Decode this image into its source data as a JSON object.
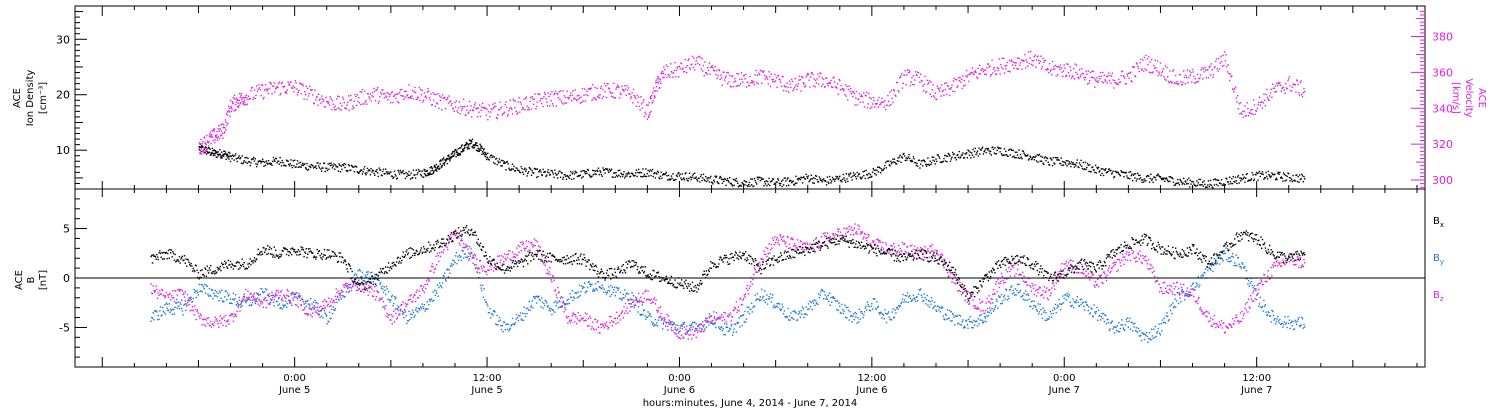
{
  "chart_data": [
    {
      "type": "scatter",
      "title": "",
      "y_label_lines": [
        "ACE",
        "Ion Density",
        "[cm⁻³]"
      ],
      "y2_label_lines": [
        "ACE",
        "Velocity",
        "[km/s]"
      ],
      "y_ticks": [
        "10",
        "20",
        "30"
      ],
      "y_range": [
        3,
        36
      ],
      "y2_ticks": [
        "300",
        "320",
        "340",
        "360",
        "380"
      ],
      "y2_range": [
        295,
        397
      ],
      "series": [
        {
          "name": "",
          "axis": "left",
          "color": "#000000",
          "x_hours": [
            -6,
            -5.5,
            -5,
            -4.5,
            -4,
            -3,
            -2,
            -1,
            0,
            1,
            2,
            3,
            4,
            5,
            6,
            7,
            8,
            8.5,
            9,
            9.5,
            10,
            10.5,
            11,
            11.5,
            12,
            13,
            14,
            15,
            16,
            17,
            18,
            19,
            20,
            21,
            22,
            23,
            24,
            25,
            26,
            27,
            28,
            29,
            30,
            31,
            32,
            33,
            34,
            35,
            36,
            37,
            38,
            39,
            40,
            41,
            42,
            43,
            44,
            45,
            46,
            47,
            48,
            49,
            50,
            51,
            52,
            53,
            54,
            55,
            56,
            57,
            58,
            59,
            60,
            61,
            62,
            63
          ],
          "values": [
            10.5,
            10,
            9.5,
            9.5,
            8.8,
            8.2,
            7.8,
            8.2,
            7.5,
            7.2,
            7,
            7,
            6.6,
            6.2,
            5.8,
            5.6,
            6,
            6.5,
            7.5,
            8.5,
            9.5,
            10.5,
            11.5,
            10.5,
            9,
            7.5,
            6.5,
            6,
            5.8,
            5.5,
            5.8,
            6.2,
            6,
            5.8,
            6.2,
            5.5,
            5.5,
            5.2,
            4.8,
            4.5,
            4.2,
            4.5,
            4.2,
            4.5,
            5.2,
            4.5,
            5,
            5.5,
            6,
            7.5,
            9,
            7.5,
            8.5,
            9,
            9.5,
            10,
            10,
            9.5,
            9,
            8,
            8,
            7.5,
            6.5,
            6,
            5.5,
            5,
            5,
            4.5,
            4.2,
            4,
            4.5,
            5,
            5.5,
            5.5,
            5.2,
            5
          ]
        },
        {
          "name": "",
          "axis": "right",
          "color": "#e020e0",
          "x_hours": [
            -6,
            -5.5,
            -5,
            -4.5,
            -4,
            -3.5,
            -3,
            -2,
            -1,
            0,
            1,
            2,
            3,
            4,
            5,
            6,
            7,
            8,
            9,
            10,
            11,
            12,
            13,
            14,
            15,
            16,
            17,
            18,
            19,
            20,
            21,
            22,
            22.5,
            23,
            24,
            25,
            26,
            27,
            28,
            29,
            30,
            31,
            32,
            33,
            34,
            35,
            36,
            37,
            38,
            39,
            40,
            41,
            42,
            43,
            44,
            45,
            46,
            47,
            48,
            49,
            50,
            51,
            52,
            53,
            54,
            55,
            56,
            57,
            58,
            59,
            60,
            61,
            62,
            63
          ],
          "values": [
            318,
            322,
            325,
            328,
            342,
            345,
            347,
            350,
            352,
            352,
            348,
            344,
            342,
            346,
            348,
            346,
            350,
            348,
            344,
            342,
            340,
            338,
            340,
            342,
            344,
            346,
            346,
            348,
            350,
            350,
            348,
            338,
            352,
            360,
            362,
            366,
            360,
            356,
            356,
            358,
            356,
            352,
            356,
            356,
            352,
            346,
            344,
            344,
            358,
            356,
            348,
            352,
            358,
            362,
            364,
            366,
            368,
            362,
            362,
            360,
            356,
            356,
            358,
            366,
            362,
            356,
            358,
            360,
            368,
            338,
            342,
            350,
            354,
            350
          ]
        }
      ]
    },
    {
      "type": "scatter",
      "title": "",
      "y_label_lines": [
        "ACE",
        "B",
        "[nT]"
      ],
      "y_ticks": [
        "-5",
        "0",
        "5"
      ],
      "y_range": [
        -9,
        9
      ],
      "x_label": "hours:minutes, June  4, 2014 - June  7, 2014",
      "x_range_hours": [
        -13.7,
        70.5
      ],
      "x_tick_hours": [
        0,
        12,
        24,
        36,
        48,
        60
      ],
      "x_ticks": [
        {
          "time": "0:00",
          "date": "June 5"
        },
        {
          "time": "12:00",
          "date": "June 5"
        },
        {
          "time": "0:00",
          "date": "June 6"
        },
        {
          "time": "12:00",
          "date": "June 6"
        },
        {
          "time": "0:00",
          "date": "June 7"
        },
        {
          "time": "12:00",
          "date": "June 7"
        }
      ],
      "series": [
        {
          "name": "Bx",
          "label_main": "B",
          "label_sub": "x",
          "color": "#000000",
          "x_hours": [
            -9,
            -8,
            -7,
            -6,
            -5,
            -4,
            -3,
            -2,
            -1,
            0,
            1,
            2,
            3,
            4,
            5,
            6,
            7,
            8,
            9,
            10,
            11,
            12,
            13,
            14,
            15,
            16,
            17,
            18,
            19,
            20,
            21,
            22,
            23,
            24,
            25,
            26,
            27,
            28,
            29,
            30,
            31,
            32,
            33,
            34,
            35,
            36,
            37,
            38,
            39,
            40,
            41,
            42,
            43,
            44,
            45,
            46,
            47,
            48,
            49,
            50,
            51,
            52,
            53,
            54,
            55,
            56,
            57,
            58,
            59,
            60,
            61,
            62,
            63
          ],
          "values": [
            2,
            2.5,
            2,
            0.5,
            1,
            1.5,
            1.5,
            3,
            2.5,
            3,
            2.5,
            2.5,
            2,
            -1,
            0,
            1.5,
            2.5,
            3,
            3.5,
            4.5,
            5,
            2,
            1,
            1.5,
            2.5,
            2,
            2,
            2,
            0.5,
            0.5,
            1.5,
            0.5,
            0,
            -0.5,
            -1,
            1.5,
            2,
            2.5,
            1,
            2,
            2.5,
            3,
            3.5,
            4,
            3.5,
            3,
            2.5,
            2,
            2.5,
            2,
            1,
            -2,
            0,
            1.5,
            2,
            1.5,
            0,
            0.5,
            1.5,
            1,
            2.5,
            3.5,
            4,
            3,
            2.5,
            3,
            1.5,
            3,
            4.5,
            4,
            2.5,
            2,
            2.5
          ]
        },
        {
          "name": "By",
          "label_main": "B",
          "label_sub": "y",
          "color": "#1a7ad4",
          "x_hours": [
            -9,
            -8,
            -7,
            -6,
            -5,
            -4,
            -3,
            -2,
            -1,
            0,
            1,
            2,
            3,
            4,
            5,
            6,
            7,
            8,
            9,
            10,
            11,
            12,
            13,
            14,
            15,
            16,
            17,
            18,
            19,
            20,
            21,
            22,
            23,
            24,
            25,
            26,
            27,
            28,
            29,
            30,
            31,
            32,
            33,
            34,
            35,
            36,
            37,
            38,
            39,
            40,
            41,
            42,
            43,
            44,
            45,
            46,
            47,
            48,
            49,
            50,
            51,
            52,
            53,
            54,
            55,
            56,
            57,
            58,
            59,
            60,
            61,
            62,
            63
          ],
          "values": [
            -4,
            -3,
            -3,
            -1,
            -1.5,
            -2,
            -2.5,
            -1.5,
            -2.5,
            -2,
            -2.5,
            -4,
            -1.5,
            0.5,
            0,
            -2,
            -4,
            -3,
            -1,
            2,
            3,
            -3,
            -5,
            -4,
            -2,
            -3,
            -2,
            -1,
            -0.5,
            -1.5,
            -2,
            -4,
            -4.5,
            -5,
            -5,
            -4,
            -5.5,
            -4,
            -1.5,
            -2.5,
            -4,
            -3,
            -1.5,
            -3,
            -4,
            -2.5,
            -4,
            -2,
            -1.5,
            -3,
            -4,
            -4.5,
            -4,
            -2,
            -1,
            -2.5,
            -4,
            -2,
            -2.5,
            -3.5,
            -5,
            -4.5,
            -6,
            -5,
            -2,
            -1,
            1,
            2.5,
            1.5,
            -2,
            -4,
            -4.5,
            -4.5
          ]
        },
        {
          "name": "Bz",
          "label_main": "B",
          "label_sub": "z",
          "color": "#e020e0",
          "x_hours": [
            -9,
            -8,
            -7,
            -6,
            -5,
            -4,
            -3,
            -2,
            -1,
            0,
            1,
            2,
            3,
            4,
            5,
            6,
            7,
            8,
            9,
            10,
            11,
            12,
            13,
            14,
            15,
            16,
            17,
            18,
            19,
            20,
            21,
            22,
            23,
            24,
            25,
            26,
            27,
            28,
            29,
            30,
            31,
            32,
            33,
            34,
            35,
            36,
            37,
            38,
            39,
            40,
            41,
            42,
            43,
            44,
            45,
            46,
            47,
            48,
            49,
            50,
            51,
            52,
            53,
            54,
            55,
            56,
            57,
            58,
            59,
            60,
            61,
            62,
            63
          ],
          "values": [
            -1,
            -2,
            -1.5,
            -4,
            -4.5,
            -4,
            -1.5,
            -2.5,
            -1.5,
            -2,
            -3.5,
            -2.5,
            -1,
            -0.5,
            -1.5,
            -4,
            -2.5,
            -1,
            2.5,
            4.5,
            2,
            1,
            2,
            3,
            3.5,
            0,
            -4,
            -4,
            -5,
            -4,
            -2.5,
            -1.5,
            -4,
            -5.5,
            -5.5,
            -4,
            -4,
            -2,
            2,
            4,
            3.5,
            3,
            4,
            4.5,
            5,
            3.5,
            3,
            3,
            2.5,
            3,
            0,
            -2,
            -3,
            0,
            1,
            -1,
            -1.5,
            1.5,
            1,
            -0.5,
            1,
            2.5,
            2,
            -1,
            -1,
            -1.5,
            -4,
            -5,
            -4,
            -1,
            1,
            2,
            1.5
          ]
        }
      ]
    }
  ]
}
